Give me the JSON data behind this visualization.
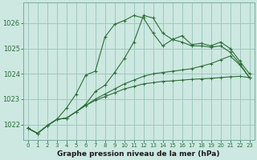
{
  "title": "Graphe pression niveau de la mer (hPa)",
  "background_color": "#cce8e0",
  "grid_color": "#a0c8c0",
  "line_color": "#2d6e3a",
  "xlim": [
    -0.5,
    23.5
  ],
  "ylim": [
    1021.4,
    1026.8
  ],
  "yticks": [
    1022,
    1023,
    1024,
    1025,
    1026
  ],
  "xticks": [
    0,
    1,
    2,
    3,
    4,
    5,
    6,
    7,
    8,
    9,
    10,
    11,
    12,
    13,
    14,
    15,
    16,
    17,
    18,
    19,
    20,
    21,
    22,
    23
  ],
  "series": [
    [
      1021.85,
      1021.65,
      1021.95,
      1022.2,
      1022.65,
      1023.2,
      1023.95,
      1024.1,
      1025.45,
      1025.95,
      1026.1,
      1026.3,
      1026.2,
      1025.6,
      1025.1,
      1025.35,
      1025.25,
      1025.1,
      1025.1,
      1025.05,
      1025.1,
      1024.85,
      1024.4,
      1023.85
    ],
    [
      1021.85,
      1021.65,
      1021.95,
      1022.2,
      1022.25,
      1022.5,
      1022.8,
      1023.3,
      1023.55,
      1024.05,
      1024.6,
      1025.25,
      1026.3,
      1026.2,
      1025.6,
      1025.35,
      1025.5,
      1025.15,
      1025.2,
      1025.1,
      1025.25,
      1025.0,
      1024.5,
      1024.0
    ],
    [
      1021.85,
      1021.65,
      1021.95,
      1022.2,
      1022.25,
      1022.5,
      1022.75,
      1023.0,
      1023.2,
      1023.4,
      1023.6,
      1023.75,
      1023.9,
      1024.0,
      1024.05,
      1024.1,
      1024.15,
      1024.2,
      1024.3,
      1024.4,
      1024.55,
      1024.7,
      1024.35,
      1023.85
    ],
    [
      1021.85,
      1021.65,
      1021.95,
      1022.2,
      1022.25,
      1022.5,
      1022.75,
      1022.95,
      1023.1,
      1023.25,
      1023.4,
      1023.5,
      1023.6,
      1023.65,
      1023.7,
      1023.72,
      1023.75,
      1023.78,
      1023.8,
      1023.82,
      1023.85,
      1023.88,
      1023.9,
      1023.85
    ]
  ]
}
